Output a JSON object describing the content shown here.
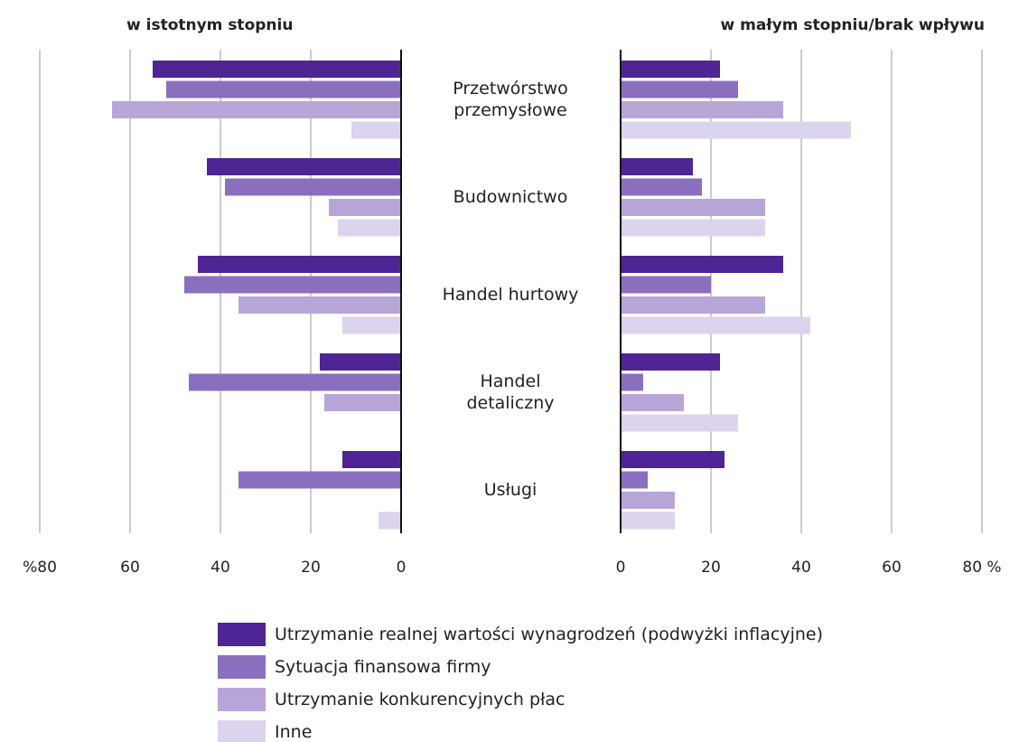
{
  "chart_data": [
    {
      "type": "bar",
      "title": "w istotnym stopniu",
      "categories": [
        "Przetwórstwo przemysłowe",
        "Budownictwo",
        "Handel hurtowy",
        "Handel detaliczny",
        "Usługi"
      ],
      "series": [
        {
          "name": "Utrzymanie realnej wartości wynagrodzeń (podwyżki inflacyjne)",
          "color": "#4f2494",
          "values": [
            55,
            43,
            45,
            18,
            13
          ]
        },
        {
          "name": "Sytuacja finansowa firmy",
          "color": "#8a6fbf",
          "values": [
            52,
            39,
            48,
            47,
            36
          ]
        },
        {
          "name": "Utrzymanie konkurencyjnych płac",
          "color": "#b8a5d8",
          "values": [
            64,
            16,
            36,
            17,
            0
          ]
        },
        {
          "name": "Inne",
          "color": "#dcd3ec",
          "values": [
            11,
            14,
            13,
            0,
            5
          ]
        }
      ],
      "xlim": [
        80,
        0
      ],
      "xticks": [
        {
          "value": 80,
          "label": "%80"
        },
        60,
        40,
        20,
        0
      ],
      "grid": true
    },
    {
      "type": "bar",
      "title": "w małym stopniu/brak wpływu",
      "series": [
        {
          "color": "#4f2494",
          "values": [
            22,
            16,
            36,
            22,
            23
          ]
        },
        {
          "color": "#8a6fbf",
          "values": [
            26,
            18,
            20,
            5,
            6
          ]
        },
        {
          "color": "#b8a5d8",
          "values": [
            36,
            32,
            32,
            14,
            12
          ]
        },
        {
          "color": "#dcd3ec",
          "values": [
            51,
            32,
            42,
            26,
            12
          ]
        }
      ],
      "xlim": [
        0,
        80
      ],
      "xticks": [
        0,
        20,
        40,
        60,
        {
          "value": 80,
          "label": "80 %"
        }
      ],
      "grid": true
    }
  ]
}
